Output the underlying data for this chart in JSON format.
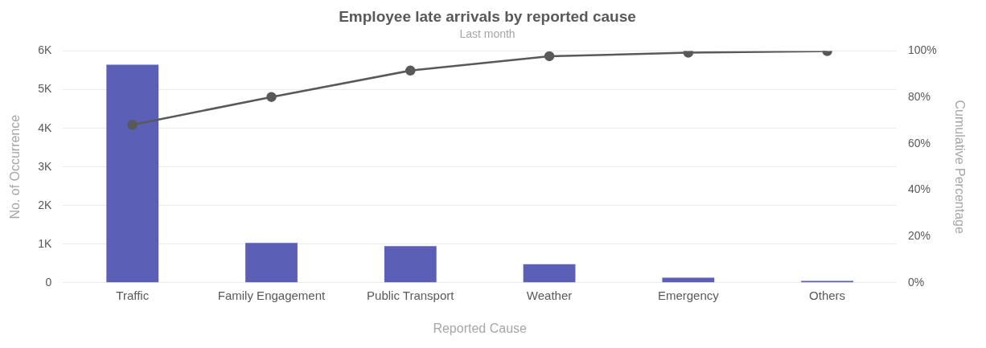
{
  "chart_data": {
    "type": "bar",
    "title": "Employee late arrivals by reported cause",
    "subtitle": "Last month",
    "xlabel": "Reported Cause",
    "ylabel": "No. of Occurrence",
    "y2label": "Cumulative Percentage",
    "categories": [
      "Traffic",
      "Family Engagement",
      "Public Transport",
      "Weather",
      "Emergency",
      "Others"
    ],
    "series": [
      {
        "color": "#5b5fb5",
        "values": [
          5650,
          1030,
          950,
          480,
          130,
          50
        ]
      },
      {
        "type": "line",
        "axis": "y2",
        "color": "#595959",
        "values": [
          68.2,
          80.2,
          91.6,
          97.8,
          99.3,
          100
        ]
      }
    ],
    "ylim": [
      0,
      6000
    ],
    "yticks": [
      {
        "value": 0,
        "label": "0"
      },
      {
        "value": 1000,
        "label": "1K"
      },
      {
        "value": 2000,
        "label": "2K"
      },
      {
        "value": 3000,
        "label": "3K"
      },
      {
        "value": 4000,
        "label": "4K"
      },
      {
        "value": 5000,
        "label": "5K"
      },
      {
        "value": 6000,
        "label": "6K"
      }
    ],
    "y2lim": [
      0,
      100
    ],
    "y2ticks": [
      {
        "value": 0,
        "label": "0%"
      },
      {
        "value": 20,
        "label": "20%"
      },
      {
        "value": 40,
        "label": "40%"
      },
      {
        "value": 60,
        "label": "60%"
      },
      {
        "value": 80,
        "label": "80%"
      },
      {
        "value": 100,
        "label": "100%"
      }
    ],
    "grid": "y",
    "legend": false,
    "marker": "circle",
    "line_style": "solid"
  }
}
